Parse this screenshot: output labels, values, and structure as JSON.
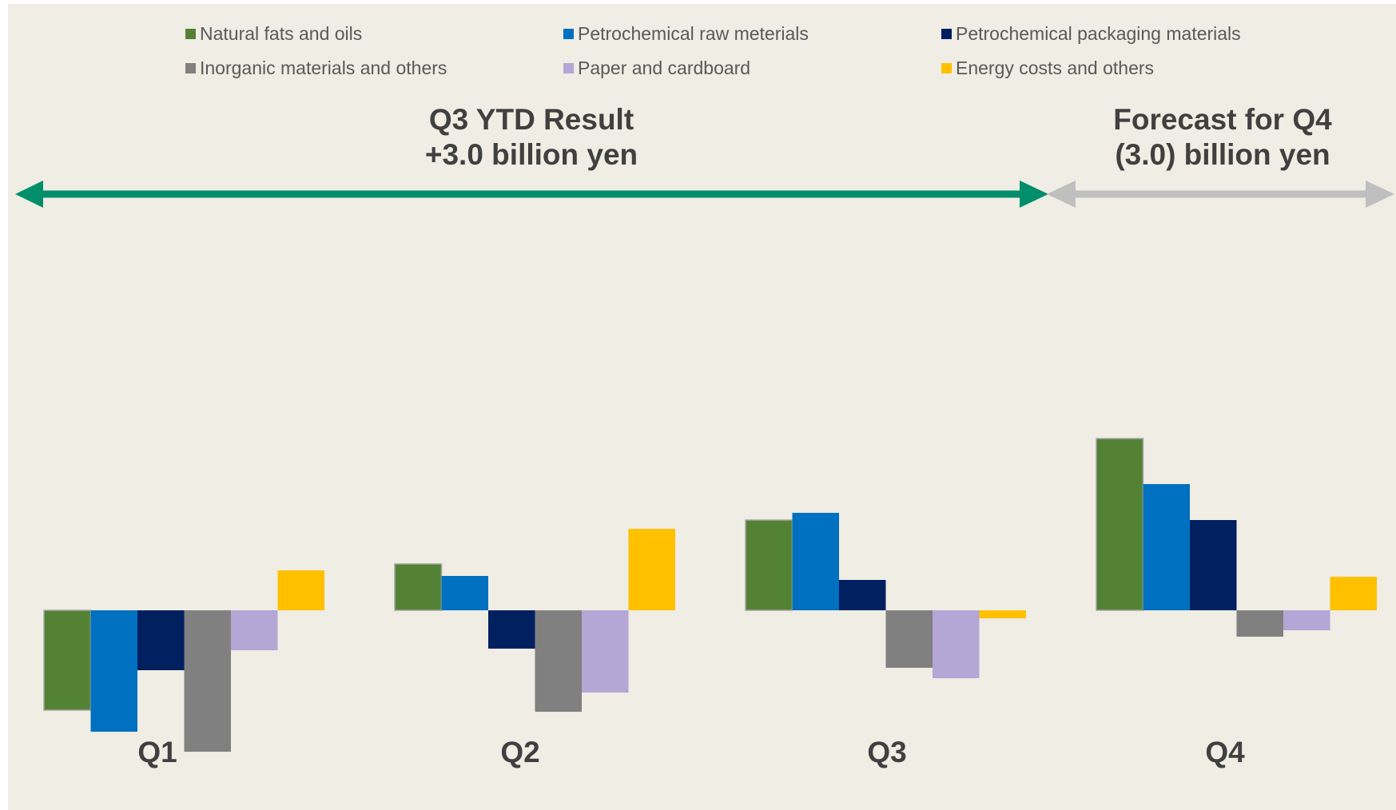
{
  "chart_data": {
    "type": "bar",
    "categories": [
      "Q1",
      "Q2",
      "Q3",
      "Q4"
    ],
    "series": [
      {
        "name": "Natural fats and oils",
        "color": "#548235",
        "values": [
          -1.25,
          0.58,
          1.13,
          2.15
        ]
      },
      {
        "name": "Petrochemical raw meterials",
        "color": "#0070c0",
        "values": [
          -1.52,
          0.43,
          1.22,
          1.58
        ]
      },
      {
        "name": "Petrochemical packaging materials",
        "color": "#002060",
        "values": [
          -0.75,
          -0.48,
          0.38,
          1.13
        ]
      },
      {
        "name": "Inorganic materials and others",
        "color": "#808080",
        "values": [
          -1.77,
          -1.27,
          -0.72,
          -0.33
        ]
      },
      {
        "name": "Paper and cardboard",
        "color": "#b4a7d6",
        "values": [
          -0.5,
          -1.03,
          -0.85,
          -0.25
        ]
      },
      {
        "name": "Energy costs and others",
        "color": "#ffc000",
        "values": [
          0.5,
          1.02,
          -0.1,
          0.42
        ]
      }
    ],
    "legend_position": "top",
    "grid": false
  },
  "banners": {
    "result": {
      "line1": "Q3 YTD Result",
      "line2": "+3.0 billion yen",
      "arrow_color": "#008e6b"
    },
    "forecast": {
      "line1": "Forecast for Q4",
      "line2": "(3.0) billion yen",
      "arrow_color": "#bfbfbf"
    }
  }
}
